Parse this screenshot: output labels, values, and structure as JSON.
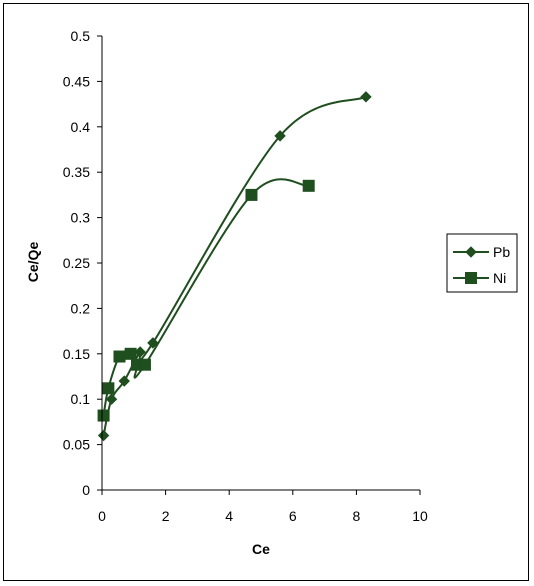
{
  "chart_data": {
    "type": "line",
    "title": "",
    "xlabel": "Ce",
    "ylabel": "Ce/Qe",
    "xlim": [
      0,
      10
    ],
    "ylim": [
      0,
      0.5
    ],
    "x_ticks": [
      0,
      2,
      4,
      6,
      8,
      10
    ],
    "y_ticks": [
      0,
      0.05,
      0.1,
      0.15,
      0.2,
      0.25,
      0.3,
      0.35,
      0.4,
      0.45,
      0.5
    ],
    "x_tick_labels": [
      "0",
      "2",
      "4",
      "6",
      "8",
      "10"
    ],
    "y_tick_labels": [
      "0",
      "0.05",
      "0.1",
      "0.15",
      "0.2",
      "0.25",
      "0.3",
      "0.35",
      "0.4",
      "0.45",
      "0.5"
    ],
    "grid": false,
    "legend_position": "right",
    "series_color": "#1f4e1f",
    "series": [
      {
        "name": "Pb",
        "marker": "diamond",
        "x": [
          0.05,
          0.3,
          0.7,
          1.2,
          1.6,
          5.6,
          8.3
        ],
        "y": [
          0.06,
          0.1,
          0.12,
          0.152,
          0.162,
          0.39,
          0.433
        ]
      },
      {
        "name": "Ni",
        "marker": "square",
        "x": [
          0.05,
          0.2,
          0.55,
          0.9,
          1.1,
          1.35,
          4.7,
          6.5
        ],
        "y": [
          0.082,
          0.112,
          0.147,
          0.15,
          0.138,
          0.138,
          0.325,
          0.335
        ]
      }
    ]
  }
}
